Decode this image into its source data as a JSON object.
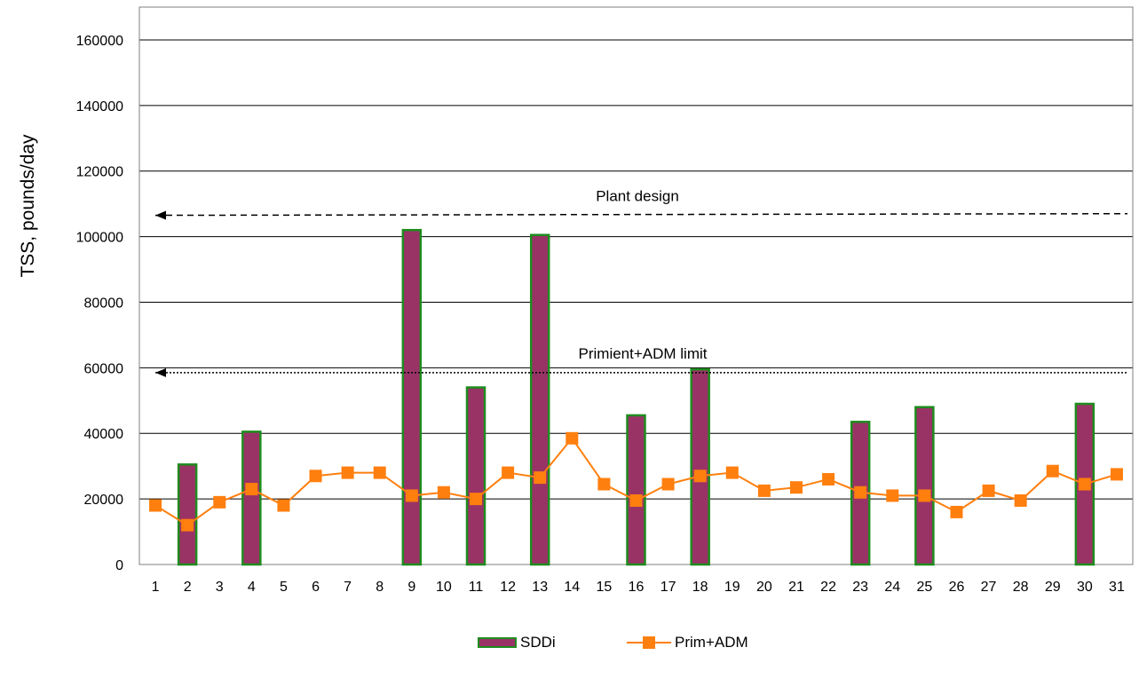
{
  "chart_data": {
    "type": "bar",
    "ylabel": "TSS, pounds/day",
    "xlabel": "",
    "title": "",
    "ylim": [
      0,
      170000
    ],
    "yticks": [
      0,
      20000,
      40000,
      60000,
      80000,
      100000,
      120000,
      140000,
      160000
    ],
    "categories": [
      "1",
      "2",
      "3",
      "4",
      "5",
      "6",
      "7",
      "8",
      "9",
      "10",
      "11",
      "12",
      "13",
      "14",
      "15",
      "16",
      "17",
      "18",
      "19",
      "20",
      "21",
      "22",
      "23",
      "24",
      "25",
      "26",
      "27",
      "28",
      "29",
      "30",
      "31"
    ],
    "grid": true,
    "legend_position": "bottom",
    "series": [
      {
        "name": "SDDi",
        "kind": "bar",
        "color": "#993366",
        "edge_color": "#1e8c1e",
        "values": [
          0,
          30500,
          0,
          40500,
          0,
          0,
          0,
          0,
          102000,
          0,
          54000,
          0,
          100500,
          0,
          0,
          45500,
          0,
          59500,
          0,
          0,
          0,
          0,
          43500,
          0,
          48000,
          0,
          0,
          0,
          0,
          49000,
          0
        ]
      },
      {
        "name": "Prim+ADM",
        "kind": "line",
        "marker": "square",
        "color": "#ff7f0e",
        "values": [
          18000,
          12000,
          19000,
          23000,
          18000,
          27000,
          28000,
          28000,
          21000,
          22000,
          20000,
          28000,
          26500,
          38500,
          24500,
          19500,
          24500,
          27000,
          28000,
          22500,
          23500,
          26000,
          22000,
          21000,
          21000,
          16000,
          22500,
          19500,
          28500,
          24500,
          27500
        ]
      }
    ],
    "annotations": [
      {
        "text": "Plant design",
        "line_style": "dashed",
        "y_start": 106500,
        "y_end": 107000,
        "arrow": "left"
      },
      {
        "text": "Primient+ADM limit",
        "line_style": "dotted",
        "y_start": 58500,
        "y_end": 58500,
        "arrow": "left"
      }
    ]
  }
}
